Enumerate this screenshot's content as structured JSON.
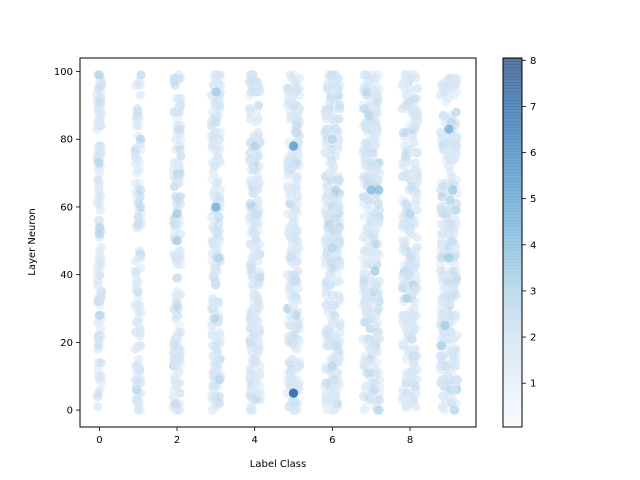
{
  "chart_data": {
    "type": "scatter",
    "title": "",
    "xlabel": "Label Class",
    "ylabel": "Layer Neuron",
    "xlim": [
      -0.5,
      9.7
    ],
    "ylim": [
      -5,
      104
    ],
    "xticks": [
      0,
      2,
      4,
      6,
      8
    ],
    "yticks": [
      0,
      20,
      40,
      60,
      80,
      100
    ],
    "grid": false,
    "colormap": "Blues",
    "marker_alpha": 0.55,
    "colorbar": {
      "range": [
        0.05,
        8.05
      ],
      "ticks": [
        1,
        2,
        3,
        4,
        5,
        6,
        7,
        8
      ]
    },
    "jitter_width_by_class": [
      0.06,
      0.08,
      0.1,
      0.12,
      0.14,
      0.16,
      0.2,
      0.22,
      0.2,
      0.22
    ],
    "point_count_by_class": [
      130,
      120,
      160,
      200,
      260,
      240,
      330,
      330,
      280,
      330
    ],
    "highlights": [
      {
        "x": 5.0,
        "y": 78,
        "value": 5
      },
      {
        "x": 5.0,
        "y": 5,
        "value": 7
      },
      {
        "x": 9.0,
        "y": 83,
        "value": 4
      },
      {
        "x": 3.0,
        "y": 60,
        "value": 4
      },
      {
        "x": 7.0,
        "y": 65,
        "value": 3.5
      },
      {
        "x": 7.2,
        "y": 65,
        "value": 3.5
      },
      {
        "x": 2.0,
        "y": 50,
        "value": 3
      },
      {
        "x": 2.0,
        "y": 58,
        "value": 3
      },
      {
        "x": 3.0,
        "y": 94,
        "value": 3
      },
      {
        "x": 9.0,
        "y": 45,
        "value": 3
      },
      {
        "x": 9.1,
        "y": 65,
        "value": 3
      },
      {
        "x": 8.9,
        "y": 25,
        "value": 3
      },
      {
        "x": 7.1,
        "y": 41,
        "value": 3
      },
      {
        "x": 0.0,
        "y": 52,
        "value": 2.5
      },
      {
        "x": 0.0,
        "y": 28,
        "value": 2.5
      },
      {
        "x": 4.0,
        "y": 78,
        "value": 2.5
      },
      {
        "x": 6.0,
        "y": 80,
        "value": 2.5
      },
      {
        "x": 6.0,
        "y": 48,
        "value": 2.5
      },
      {
        "x": 8.0,
        "y": 58,
        "value": 2.5
      },
      {
        "x": 1.0,
        "y": 55,
        "value": 2
      }
    ]
  }
}
